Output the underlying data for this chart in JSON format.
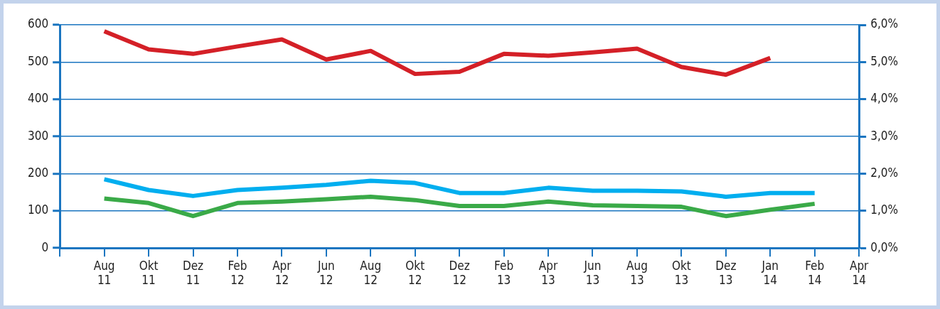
{
  "chart_data": {
    "type": "line",
    "categories": [
      null,
      "Aug 11",
      "Okt 11",
      "Dez 11",
      "Feb 12",
      "Apr 12",
      "Jun 12",
      "Aug 12",
      "Okt 12",
      "Dez 12",
      "Feb 13",
      "Apr 13",
      "Jun 13",
      "Aug 13",
      "Okt 13",
      "Dez 13",
      "Jan 14",
      "Feb 14",
      "Apr 14"
    ],
    "series": [
      {
        "color": "#d42027",
        "values": [
          null,
          583,
          534,
          522,
          542,
          561,
          507,
          530,
          468,
          474,
          522,
          517,
          526,
          536,
          487,
          466,
          511,
          null,
          null
        ]
      },
      {
        "color": "#00aeef",
        "values": [
          null,
          185,
          156,
          140,
          156,
          162,
          170,
          181,
          175,
          148,
          148,
          162,
          154,
          154,
          152,
          138,
          148,
          148,
          null
        ]
      },
      {
        "color": "#3aaa48",
        "values": [
          null,
          133,
          121,
          86,
          121,
          125,
          131,
          138,
          129,
          113,
          113,
          125,
          115,
          113,
          111,
          86,
          103,
          119,
          null
        ]
      }
    ],
    "ylim": [
      0,
      600
    ],
    "yticks": [
      0,
      100,
      200,
      300,
      400,
      500,
      600
    ],
    "y2lim": [
      0,
      6
    ],
    "y2ticks": [
      {
        "value": 0,
        "label": "0,0%"
      },
      {
        "value": 1,
        "label": "1,0%"
      },
      {
        "value": 2,
        "label": "2,0%"
      },
      {
        "value": 3,
        "label": "3,0%"
      },
      {
        "value": 4,
        "label": "4,0%"
      },
      {
        "value": 5,
        "label": "5,0%"
      },
      {
        "value": 6,
        "label": "6,0%"
      }
    ],
    "grid": "y",
    "legend": false,
    "marker": "none",
    "line_style": "solid"
  }
}
